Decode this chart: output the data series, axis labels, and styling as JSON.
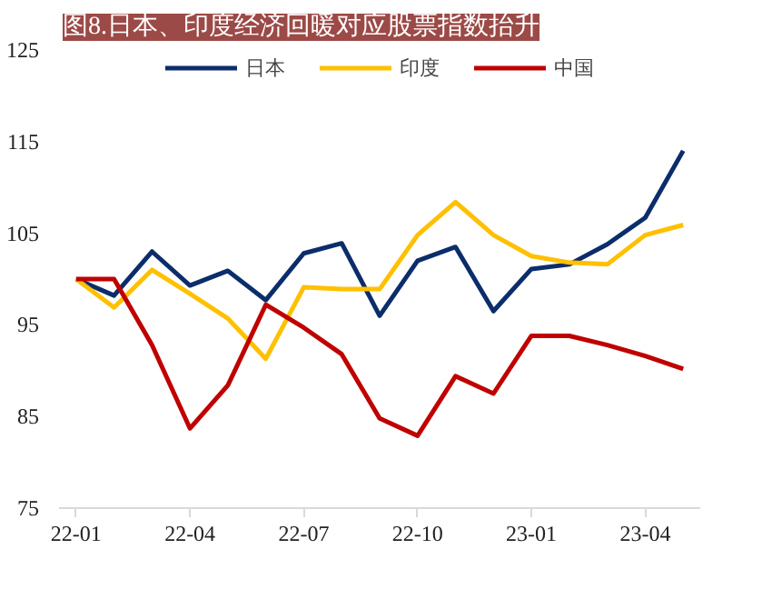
{
  "chart_data": {
    "type": "line",
    "title": "图8.日本、印度经济回暖对应股票指数抬升",
    "categories": [
      "22-01",
      null,
      null,
      "22-04",
      null,
      null,
      "22-07",
      null,
      null,
      "22-10",
      null,
      null,
      "23-01",
      null,
      null,
      "23-04",
      null
    ],
    "series": [
      {
        "name": "日本",
        "color": "#0c2d6b",
        "values": [
          100,
          98.2,
          103,
          99.3,
          100.9,
          97.7,
          102.8,
          103.9,
          96.0,
          102.0,
          103.5,
          96.5,
          101.1,
          101.6,
          103.8,
          106.7,
          114.0
        ]
      },
      {
        "name": "印度",
        "color": "#ffc000",
        "values": [
          100,
          96.9,
          101,
          98.4,
          95.7,
          91.3,
          99.1,
          98.9,
          98.9,
          104.8,
          108.4,
          104.8,
          102.5,
          101.8,
          101.6,
          104.8,
          105.9
        ]
      },
      {
        "name": "中国",
        "color": "#c00000",
        "values": [
          100,
          100,
          92.8,
          83.7,
          88.4,
          97.2,
          94.7,
          91.8,
          84.8,
          82.9,
          89.4,
          87.5,
          93.8,
          93.8,
          92.8,
          91.6,
          90.2
        ]
      }
    ],
    "ylim": [
      75,
      125
    ],
    "yticks": [
      75,
      85,
      95,
      105,
      115,
      125
    ],
    "grid": false,
    "legend": "top",
    "marker": "none",
    "line_style": "solid"
  }
}
